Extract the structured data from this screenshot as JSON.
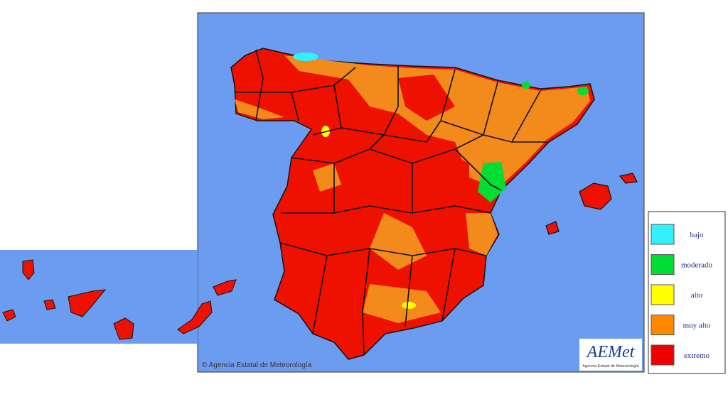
{
  "map": {
    "copyright": "© Agencia Estatal de Meteorología",
    "logo": {
      "name": "AEMet",
      "subtitle": "Agencia Estatal de Meteorología"
    },
    "legend": [
      {
        "label": "bajo",
        "color": "#33f0ff"
      },
      {
        "label": "moderado",
        "color": "#00dd33"
      },
      {
        "label": "alto",
        "color": "#ffff00"
      },
      {
        "label": "muy alto",
        "color": "#ff8800"
      },
      {
        "label": "extremo",
        "color": "#ee0000"
      }
    ]
  }
}
